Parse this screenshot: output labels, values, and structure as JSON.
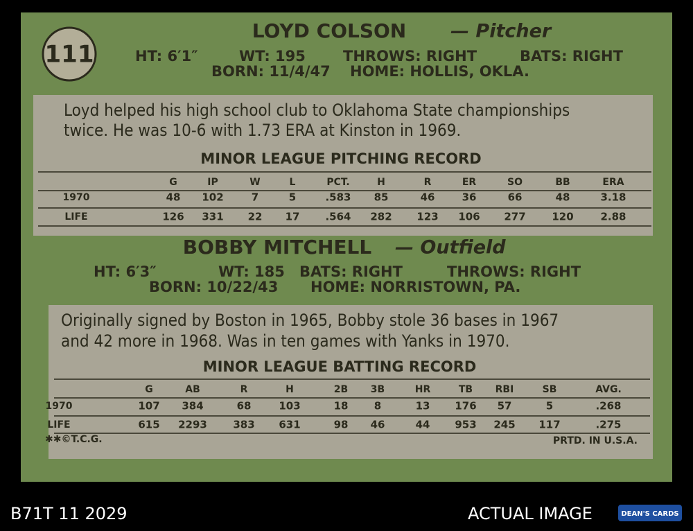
{
  "card": {
    "number": "111",
    "players": [
      {
        "name": "LOYD COLSON",
        "position": "— Pitcher",
        "vitals_1": [
          "HT: 6′1″",
          "WT: 195",
          "THROWS: RIGHT",
          "BATS: RIGHT"
        ],
        "vitals_2": [
          "BORN: 11/4/47",
          "HOME: HOLLIS, OKLA."
        ],
        "bio": [
          "Loyd helped his high school club to Oklahoma State championships",
          "twice. He was 10-6 with 1.73 ERA at Kinston in 1969."
        ],
        "record_title": "MINOR LEAGUE PITCHING RECORD",
        "headers": [
          "G",
          "IP",
          "W",
          "L",
          "PCT.",
          "H",
          "R",
          "ER",
          "SO",
          "BB",
          "ERA"
        ],
        "rows": [
          {
            "label": "1970",
            "cells": [
              "48",
              "102",
              "7",
              "5",
              ".583",
              "85",
              "46",
              "36",
              "66",
              "48",
              "3.18"
            ]
          },
          {
            "label": "LIFE",
            "cells": [
              "126",
              "331",
              "22",
              "17",
              ".564",
              "282",
              "123",
              "106",
              "277",
              "120",
              "2.88"
            ]
          }
        ]
      },
      {
        "name": "BOBBY MITCHELL",
        "position": "— Outfield",
        "vitals_1": [
          "HT: 6′3″",
          "WT: 185",
          "BATS: RIGHT",
          "THROWS: RIGHT"
        ],
        "vitals_2": [
          "BORN: 10/22/43",
          "HOME: NORRISTOWN, PA."
        ],
        "bio": [
          "Originally signed by Boston in 1965, Bobby stole 36 bases in 1967",
          "and 42 more in 1968. Was in ten games with Yanks in 1970."
        ],
        "record_title": "MINOR LEAGUE BATTING RECORD",
        "headers": [
          "G",
          "AB",
          "R",
          "H",
          "2B",
          "3B",
          "HR",
          "TB",
          "RBI",
          "SB",
          "AVG."
        ],
        "rows": [
          {
            "label": "1970",
            "cells": [
              "107",
              "384",
              "68",
              "103",
              "18",
              "8",
              "13",
              "176",
              "57",
              "5",
              ".268"
            ]
          },
          {
            "label": "LIFE",
            "cells": [
              "615",
              "2293",
              "383",
              "631",
              "98",
              "46",
              "44",
              "953",
              "245",
              "117",
              ".275"
            ]
          }
        ]
      }
    ],
    "copyright": "✱✱©T.C.G.",
    "printed": "PRTD. IN U.S.A."
  },
  "footer": {
    "id": "B71T 11 2029",
    "caption": "ACTUAL IMAGE",
    "logo": "DEAN'S CARDS"
  }
}
